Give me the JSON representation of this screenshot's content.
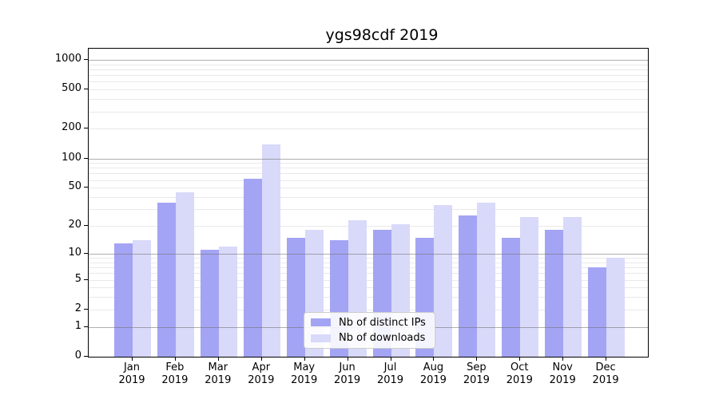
{
  "title": "ygs98cdf 2019",
  "chart_data": {
    "type": "bar",
    "title": "ygs98cdf 2019",
    "categories": [
      "Jan",
      "Feb",
      "Mar",
      "Apr",
      "May",
      "Jun",
      "Jul",
      "Aug",
      "Sep",
      "Oct",
      "Nov",
      "Dec"
    ],
    "x_year": "2019",
    "series": [
      {
        "name": "Nb of distinct IPs",
        "color": "#a4a4f4",
        "values": [
          13,
          35,
          11,
          62,
          15,
          14,
          18,
          15,
          26,
          15,
          18,
          7
        ]
      },
      {
        "name": "Nb of downloads",
        "color": "#d9d9f9",
        "values": [
          14,
          45,
          12,
          140,
          18,
          23,
          21,
          33,
          35,
          25,
          25,
          9
        ]
      }
    ],
    "yscale": "log1p",
    "yticks": [
      0,
      1,
      2,
      5,
      10,
      20,
      50,
      100,
      200,
      500,
      1000
    ],
    "ylim": [
      0,
      1250
    ],
    "grid": true,
    "legend_position": "inside-bottom-center",
    "colors": {
      "major_grid": "#6e6e6e",
      "minor_grid": "#e9e9e9",
      "axis": "#000000",
      "background": "#ffffff"
    }
  }
}
